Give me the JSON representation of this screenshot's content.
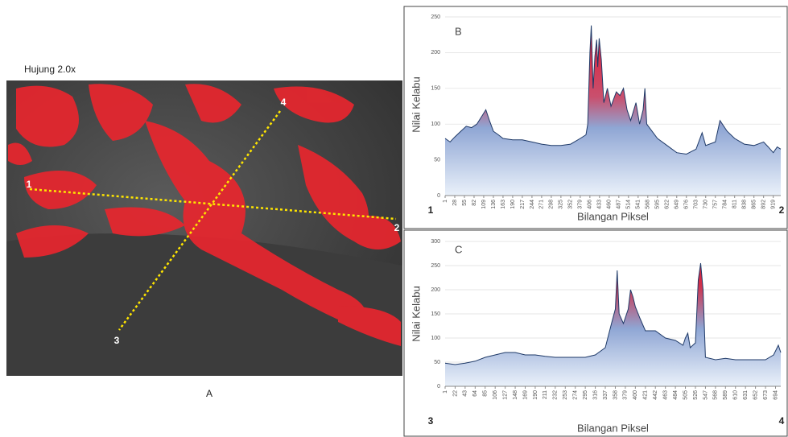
{
  "panel_a": {
    "title": "Hujung 2.0x",
    "caption": "A",
    "points": [
      "1",
      "2",
      "3",
      "4"
    ]
  },
  "chart_data": [
    {
      "type": "area",
      "annotation": "B",
      "y_label": "Nilai Kelabu",
      "x_label": "Bilangan Piksel",
      "start_label": "1",
      "end_label": "2",
      "xlim": [
        1,
        940
      ],
      "ylim": [
        0,
        250
      ],
      "xticks": [
        1,
        28,
        55,
        82,
        109,
        136,
        163,
        190,
        217,
        244,
        271,
        298,
        325,
        352,
        379,
        406,
        433,
        460,
        487,
        514,
        541,
        568,
        595,
        622,
        649,
        676,
        703,
        730,
        757,
        784,
        811,
        838,
        865,
        892,
        919
      ],
      "yticks": [
        0,
        50,
        100,
        150,
        200,
        250
      ],
      "grid": true,
      "x": [
        1,
        15,
        28,
        45,
        60,
        75,
        90,
        105,
        115,
        125,
        136,
        150,
        163,
        190,
        217,
        244,
        271,
        298,
        325,
        352,
        379,
        395,
        400,
        406,
        410,
        415,
        420,
        425,
        428,
        432,
        438,
        445,
        455,
        465,
        480,
        490,
        500,
        510,
        520,
        535,
        545,
        555,
        560,
        565,
        580,
        595,
        622,
        649,
        676,
        703,
        720,
        730,
        757,
        770,
        790,
        811,
        838,
        865,
        892,
        905,
        919,
        930,
        940
      ],
      "series": [
        {
          "color": "#1f3a68",
          "values": [
            80,
            75,
            82,
            90,
            97,
            95,
            100,
            112,
            120,
            105,
            90,
            85,
            80,
            78,
            78,
            75,
            72,
            70,
            70,
            72,
            80,
            85,
            100,
            200,
            238,
            150,
            195,
            218,
            180,
            220,
            190,
            130,
            150,
            125,
            145,
            140,
            150,
            120,
            105,
            130,
            100,
            120,
            150,
            100,
            90,
            80,
            70,
            60,
            58,
            65,
            88,
            70,
            75,
            105,
            90,
            80,
            72,
            70,
            75,
            68,
            60,
            68,
            65
          ]
        }
      ]
    },
    {
      "type": "area",
      "annotation": "C",
      "y_label": "Nilai Kelabu",
      "x_label": "Bilangan Piksel",
      "start_label": "3",
      "end_label": "4",
      "xlim": [
        1,
        705
      ],
      "ylim": [
        0,
        300
      ],
      "xticks": [
        1,
        22,
        43,
        64,
        85,
        106,
        127,
        148,
        169,
        190,
        211,
        232,
        253,
        274,
        295,
        316,
        337,
        358,
        379,
        400,
        421,
        442,
        463,
        484,
        505,
        526,
        547,
        568,
        589,
        610,
        631,
        652,
        673,
        694
      ],
      "yticks": [
        0,
        50,
        100,
        150,
        200,
        250,
        300
      ],
      "grid": true,
      "x": [
        1,
        22,
        43,
        64,
        85,
        106,
        127,
        148,
        169,
        190,
        211,
        232,
        253,
        274,
        295,
        316,
        337,
        350,
        358,
        362,
        366,
        375,
        385,
        390,
        395,
        400,
        410,
        421,
        442,
        463,
        484,
        500,
        505,
        510,
        515,
        526,
        532,
        537,
        542,
        547,
        568,
        589,
        610,
        631,
        652,
        673,
        690,
        700,
        705
      ],
      "series": [
        {
          "color": "#1f3a68",
          "values": [
            48,
            45,
            48,
            52,
            60,
            65,
            70,
            70,
            65,
            65,
            62,
            60,
            60,
            60,
            60,
            65,
            80,
            130,
            160,
            240,
            150,
            130,
            160,
            200,
            185,
            165,
            140,
            115,
            115,
            100,
            95,
            85,
            100,
            110,
            80,
            90,
            220,
            255,
            200,
            60,
            55,
            58,
            55,
            55,
            55,
            55,
            65,
            85,
            70
          ]
        }
      ]
    }
  ]
}
